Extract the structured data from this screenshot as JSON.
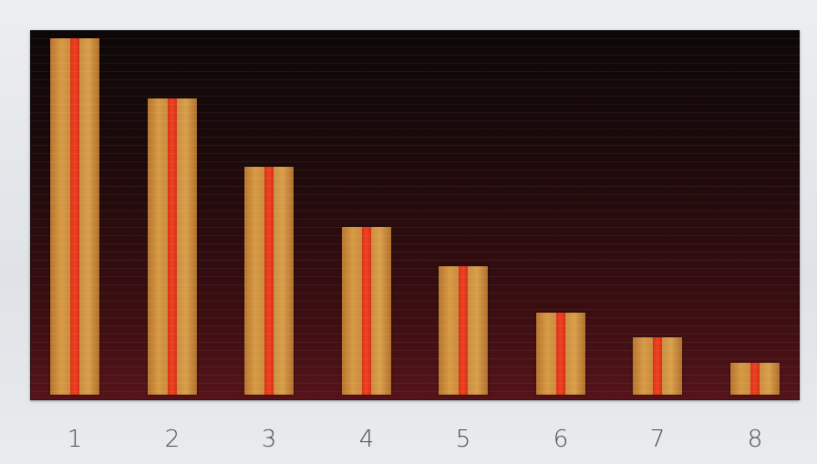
{
  "chart_data": {
    "type": "bar",
    "categories": [
      "1",
      "2",
      "3",
      "4",
      "5",
      "6",
      "7",
      "8"
    ],
    "values": [
      100,
      83,
      64,
      47,
      36,
      23,
      16,
      9
    ],
    "title": "",
    "xlabel": "",
    "ylabel": "",
    "ylim": [
      0,
      100
    ],
    "grid": true,
    "legend": "none"
  },
  "colors": {
    "background_top": "#0e0707",
    "background_bottom": "#54141a",
    "bar": "#c98a3e",
    "bar_stripe": "#f0421e",
    "label": "#4c4f55"
  }
}
